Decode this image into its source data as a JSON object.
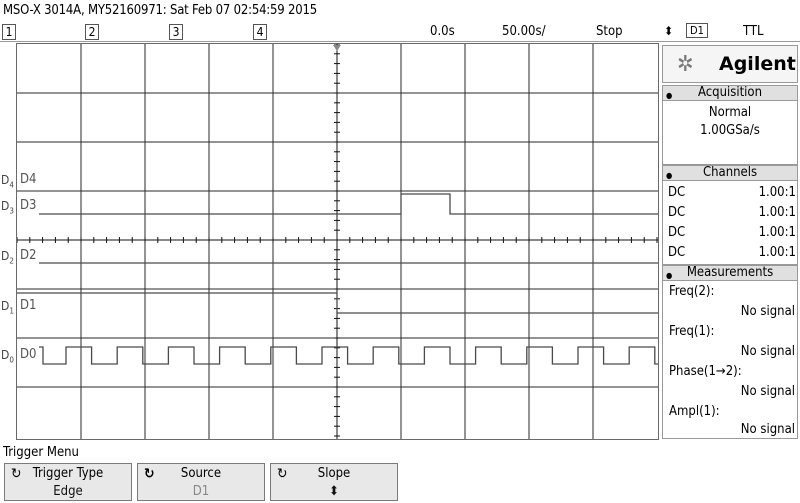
{
  "title": "MSO-X 3014A, MY52160971: Sat Feb 07 02:54:59 2015",
  "status": {
    "channels": [
      "1",
      "2",
      "3",
      "4"
    ],
    "time_ref": "0.0s",
    "time_div": "50.00s/",
    "run_state": "Stop",
    "trig_source": "D1",
    "trig_level": "TTL"
  },
  "digital": {
    "rows": [
      "D4",
      "D3",
      "D2",
      "D1",
      "D0"
    ],
    "labels": [
      "D4",
      "D3",
      "D2",
      "D1",
      "D0"
    ]
  },
  "panel": {
    "brand": "Agilent",
    "acquisition_header": "Acquisition",
    "acq_mode": "Normal",
    "sample_rate": "1.00GSa/s",
    "channels_header": "Channels",
    "channels": [
      {
        "coupling": "DC",
        "probe": "1.00:1"
      },
      {
        "coupling": "DC",
        "probe": "1.00:1"
      },
      {
        "coupling": "DC",
        "probe": "1.00:1"
      },
      {
        "coupling": "DC",
        "probe": "1.00:1"
      }
    ],
    "measurements_header": "Measurements",
    "measurements": [
      {
        "name": "Freq(2):",
        "value": "No signal"
      },
      {
        "name": "Freq(1):",
        "value": "No signal"
      },
      {
        "name": "Phase(1→2):",
        "value": "No signal"
      },
      {
        "name": "Ampl(1):",
        "value": "No signal"
      }
    ]
  },
  "menu": {
    "title": "Trigger Menu",
    "softkeys": [
      {
        "label": "Trigger Type",
        "value": "Edge",
        "icon": "rotate-icon"
      },
      {
        "label": "Source",
        "value": "D1",
        "icon": "rotate-icon"
      },
      {
        "label": "Slope",
        "value": "⬍",
        "icon": "rotate-icon"
      }
    ]
  }
}
